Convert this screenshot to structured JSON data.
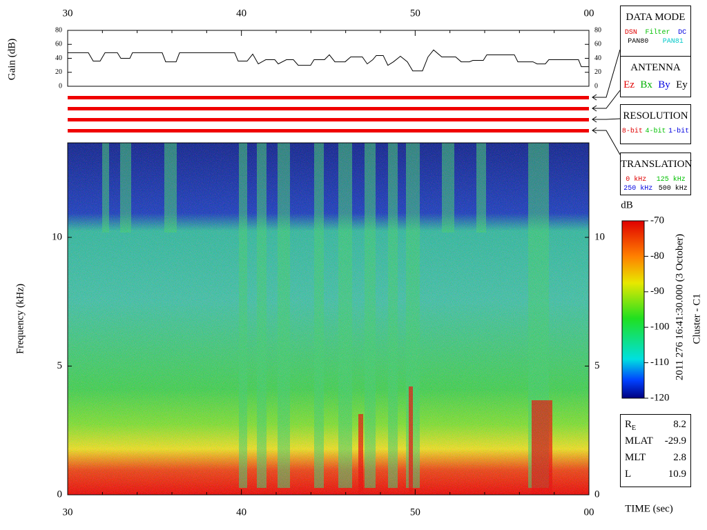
{
  "chart_data": [
    {
      "type": "line",
      "ylabel": "Gain (dB)",
      "xlim": [
        30,
        60
      ],
      "xticks": [
        30,
        40,
        50,
        {
          "value": 60,
          "label": "00"
        }
      ],
      "xminorticks": [
        32,
        34,
        36,
        38,
        42,
        44,
        46,
        48,
        52,
        54,
        56,
        58
      ],
      "ylim": [
        0,
        80
      ],
      "yticks": [
        0,
        20,
        40,
        60,
        80
      ],
      "color": "#000000",
      "x": [
        30.0,
        31.19,
        31.47,
        31.87,
        32.15,
        32.86,
        33.06,
        33.58,
        33.73,
        35.44,
        35.64,
        36.24,
        36.44,
        39.61,
        39.81,
        40.33,
        40.65,
        40.97,
        41.4,
        41.92,
        42.12,
        42.59,
        42.99,
        43.27,
        43.98,
        44.18,
        44.78,
        45.06,
        45.38,
        45.97,
        46.29,
        46.96,
        47.24,
        47.56,
        47.76,
        48.16,
        48.43,
        48.75,
        49.15,
        49.55,
        49.86,
        50.42,
        50.74,
        51.06,
        51.53,
        52.33,
        52.65,
        53.12,
        53.32,
        53.92,
        54.12,
        55.71,
        55.91,
        56.78,
        57.02,
        57.49,
        57.69,
        59.4,
        59.56,
        60.0
      ],
      "values": [
        48,
        48,
        36,
        36,
        48,
        48,
        40,
        40,
        48,
        48,
        35,
        35,
        48,
        48,
        36,
        36,
        46,
        32,
        38,
        38,
        32,
        38,
        38,
        30,
        30,
        38,
        38,
        45,
        35,
        35,
        42,
        42,
        32,
        38,
        44,
        44,
        30,
        35,
        43,
        35,
        22,
        22,
        42,
        52,
        42,
        42,
        35,
        35,
        37,
        37,
        45,
        45,
        35,
        35,
        32,
        32,
        38,
        38,
        28,
        28
      ]
    },
    {
      "type": "spectrogram",
      "ylabel": "Frequency (kHz)",
      "xlabel": "TIME (sec)",
      "xlim": [
        30,
        60
      ],
      "xticks": [
        30,
        40,
        50,
        {
          "value": 60,
          "label": "00"
        }
      ],
      "xminorticks": [
        32,
        34,
        36,
        38,
        42,
        44,
        46,
        48,
        52,
        54,
        56,
        58
      ],
      "ylim": [
        0,
        13.67
      ],
      "yticks": [
        0,
        5,
        10
      ],
      "colorbar": {
        "title": "dB",
        "clim": [
          -120,
          -70
        ],
        "ticks": [
          -70,
          -80,
          -90,
          -100,
          -110,
          -120
        ]
      },
      "annotations": [
        "2011 276 16:41:30.000 (3 October)",
        "Cluster - C1"
      ]
    }
  ],
  "panels": [
    {
      "title": "DATA MODE",
      "rows": [
        [
          {
            "text": "DSN",
            "color": "#e00000"
          },
          {
            "text": "Filter",
            "color": "#00c000"
          },
          {
            "text": "DC",
            "color": "#0000e0"
          }
        ],
        [
          {
            "text": "PAN80",
            "color": "#000000"
          },
          {
            "text": "PAN81",
            "color": "#00c8c8"
          }
        ]
      ]
    },
    {
      "title": "ANTENNA",
      "rows": [
        [
          {
            "text": "Ez",
            "color": "#e00000"
          },
          {
            "text": "Bx",
            "color": "#00b000"
          },
          {
            "text": "By",
            "color": "#0000e0"
          },
          {
            "text": "Ey",
            "color": "#000000"
          }
        ]
      ]
    },
    {
      "title": "RESOLUTION",
      "rows": [
        [
          {
            "text": "8-bit",
            "color": "#e00000"
          },
          {
            "text": "4-bit",
            "color": "#00c000"
          },
          {
            "text": "1-bit",
            "color": "#0000e0"
          }
        ]
      ]
    },
    {
      "title": "TRANSLATION",
      "rows": [
        [
          {
            "text": "0 kHz",
            "color": "#e00000"
          },
          {
            "text": "125 kHz",
            "color": "#00c000"
          }
        ],
        [
          {
            "text": "250 kHz",
            "color": "#0000e0"
          },
          {
            "text": "500 kHz",
            "color": "#000000"
          }
        ]
      ]
    }
  ],
  "ephemeris": [
    {
      "label": "R",
      "sub": "E",
      "value": 8.2
    },
    {
      "label": "MLAT",
      "value": -29.9
    },
    {
      "label": "MLT",
      "value": 2.8
    },
    {
      "label": "L",
      "value": 10.9
    }
  ]
}
